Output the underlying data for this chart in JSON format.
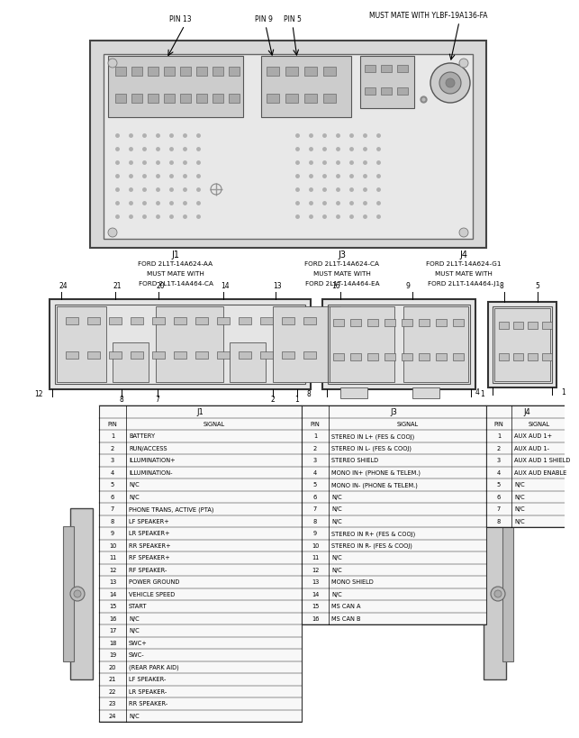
{
  "bg_color": "#ffffff",
  "connector_subtexts": {
    "J1": [
      "FORD 2L1T-14A624-AA",
      "MUST MATE WITH",
      "FORD 2L1T-14A464-CA"
    ],
    "J3": [
      "FORD 2L1T-14A624-CA",
      "MUST MATE WITH",
      "FORD 2L1T-14A464-EA"
    ],
    "J4": [
      "FORD 2L1T-14A624-G1",
      "MUST MATE WITH",
      "FORD 2L1T-14A464-J1"
    ]
  },
  "j1_table": {
    "pins": [
      1,
      2,
      3,
      4,
      5,
      6,
      7,
      8,
      9,
      10,
      11,
      12,
      13,
      14,
      15,
      16,
      17,
      18,
      19,
      20,
      21,
      22,
      23,
      24
    ],
    "signals": [
      "BATTERY",
      "RUN/ACCESS",
      "ILLUMINATION+",
      "ILLUMINATION-",
      "N/C",
      "N/C",
      "PHONE TRANS, ACTIVE (PTA)",
      "LF SPEAKER+",
      "LR SPEAKER+",
      "RR SPEAKER+",
      "RF SPEAKER+",
      "RF SPEAKER-",
      "POWER GROUND",
      "VEHICLE SPEED",
      "START",
      "N/C",
      "N/C",
      "SWC+",
      "SWC-",
      "(REAR PARK AID)",
      "LF SPEAKER-",
      "LR SPEAKER-",
      "RR SPEAKER-",
      "N/C"
    ]
  },
  "j3_table": {
    "pins": [
      1,
      2,
      3,
      4,
      5,
      6,
      7,
      8,
      9,
      10,
      11,
      12,
      13,
      14,
      15,
      16
    ],
    "signals": [
      "STEREO IN L+ (FES & COOJ)",
      "STEREO IN L- (FES & COOJ)",
      "STEREO SHIELD",
      "MONO IN+ (PHONE & TELEM.)",
      "MONO IN- (PHONE & TELEM.)",
      "N/C",
      "N/C",
      "N/C",
      "STEREO IN R+ (FES & COOJ)",
      "STEREO IN R- (FES & COOJ)",
      "N/C",
      "N/C",
      "MONO SHIELD",
      "N/C",
      "MS CAN A",
      "MS CAN B"
    ]
  },
  "j4_table": {
    "pins": [
      1,
      2,
      3,
      4,
      5,
      6,
      7,
      8
    ],
    "signals": [
      "AUX AUD 1+",
      "AUX AUD 1-",
      "AUX AUD 1 SHIELD",
      "AUX AUD ENABLE",
      "N/C",
      "N/C",
      "N/C",
      "N/C"
    ]
  },
  "gray_light": "#e8e8e8",
  "gray_mid": "#d0d0d0",
  "gray_dark": "#aaaaaa",
  "line_color": "#444444"
}
